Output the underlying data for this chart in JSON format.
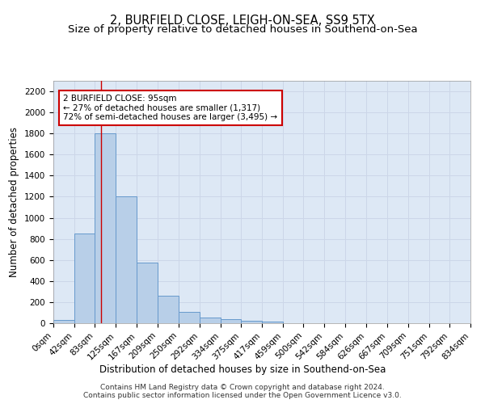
{
  "title_line1": "2, BURFIELD CLOSE, LEIGH-ON-SEA, SS9 5TX",
  "title_line2": "Size of property relative to detached houses in Southend-on-Sea",
  "xlabel": "Distribution of detached houses by size in Southend-on-Sea",
  "ylabel": "Number of detached properties",
  "bin_edges": [
    0,
    42,
    83,
    125,
    167,
    209,
    250,
    292,
    334,
    375,
    417,
    459,
    500,
    542,
    584,
    626,
    667,
    709,
    751,
    792,
    834
  ],
  "bar_heights": [
    30,
    850,
    1800,
    1200,
    575,
    260,
    110,
    50,
    35,
    25,
    15,
    0,
    0,
    0,
    0,
    0,
    0,
    0,
    0,
    0
  ],
  "bar_color": "#b8cfe8",
  "bar_edgecolor": "#6699cc",
  "bar_linewidth": 0.7,
  "property_size": 95,
  "vline_color": "#cc0000",
  "annotation_line1": "2 BURFIELD CLOSE: 95sqm",
  "annotation_line2": "← 27% of detached houses are smaller (1,317)",
  "annotation_line3": "72% of semi-detached houses are larger (3,495) →",
  "annotation_box_edgecolor": "#cc0000",
  "annotation_box_facecolor": "#ffffff",
  "ylim": [
    0,
    2300
  ],
  "yticks": [
    0,
    200,
    400,
    600,
    800,
    1000,
    1200,
    1400,
    1600,
    1800,
    2000,
    2200
  ],
  "tick_labels": [
    "0sqm",
    "42sqm",
    "83sqm",
    "125sqm",
    "167sqm",
    "209sqm",
    "250sqm",
    "292sqm",
    "334sqm",
    "375sqm",
    "417sqm",
    "459sqm",
    "500sqm",
    "542sqm",
    "584sqm",
    "626sqm",
    "667sqm",
    "709sqm",
    "751sqm",
    "792sqm",
    "834sqm"
  ],
  "grid_color": "#ccd6e8",
  "background_color": "#dde8f5",
  "footer_text": "Contains HM Land Registry data © Crown copyright and database right 2024.\nContains public sector information licensed under the Open Government Licence v3.0.",
  "title_fontsize": 10.5,
  "subtitle_fontsize": 9.5,
  "axis_label_fontsize": 8.5,
  "tick_fontsize": 7.5,
  "footer_fontsize": 6.5
}
